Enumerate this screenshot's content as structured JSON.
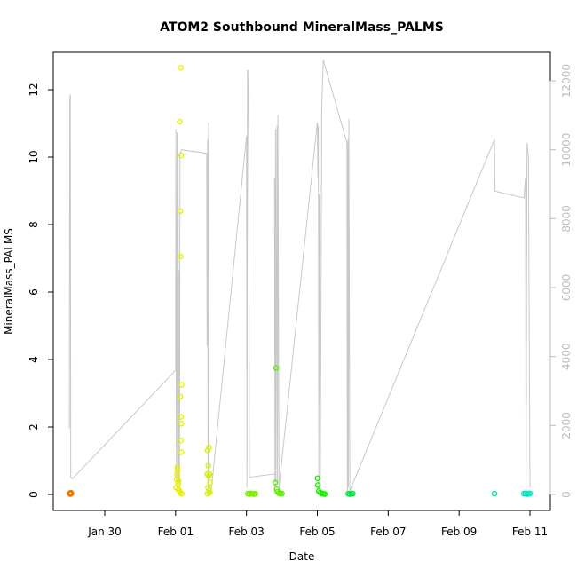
{
  "chart_data": {
    "type": "scatter",
    "title": "ATOM2 Southbound MineralMass_PALMS",
    "xlabel": "Date",
    "ylabel": "MineralMass_PALMS",
    "x_unit": "days",
    "xlim": [
      "2017-01-28",
      "2017-02-11"
    ],
    "ylim": [
      0,
      13
    ],
    "y_ticks": [
      0,
      2,
      4,
      6,
      8,
      10,
      12
    ],
    "y_tick_labels": [
      "0",
      "2",
      "4",
      "6",
      "8",
      "10",
      "12"
    ],
    "x_ticks": [
      "2017-01-30",
      "2017-02-01",
      "2017-02-03",
      "2017-02-05",
      "2017-02-07",
      "2017-02-09",
      "2017-02-11"
    ],
    "x_tick_labels": [
      "Jan 30",
      "Feb 01",
      "Feb 03",
      "Feb 05",
      "Feb 07",
      "Feb 09",
      "Feb 11"
    ],
    "y2_ticks": [
      0,
      2000,
      4000,
      6000,
      8000,
      10000,
      12000
    ],
    "y2_tick_labels": [
      "0",
      "2000",
      "4000",
      "6000",
      "8000",
      "10000",
      "12000"
    ],
    "y2lim": [
      0,
      12800
    ],
    "y2_color": "#bdbdbd",
    "grid": false,
    "legend": "none",
    "series": [
      {
        "color": "#f07800",
        "points": [
          [
            "2017-01-29T00:10",
            0.03
          ],
          [
            "2017-01-29T00:20",
            0.02
          ],
          [
            "2017-01-29T00:30",
            0.04
          ],
          [
            "2017-01-29T00:40",
            0.01
          ],
          [
            "2017-01-29T00:50",
            0.03
          ],
          [
            "2017-01-29T01:00",
            0.02
          ],
          [
            "2017-01-29T01:10",
            0.05
          ],
          [
            "2017-01-29T01:20",
            0.02
          ]
        ]
      },
      {
        "color": "#e8f000",
        "points": [
          [
            "2017-02-01T03:30",
            12.65
          ],
          [
            "2017-02-01T02:50",
            11.05
          ],
          [
            "2017-02-01T03:50",
            10.05
          ],
          [
            "2017-02-01T03:10",
            8.4
          ],
          [
            "2017-02-01T03:20",
            7.05
          ],
          [
            "2017-02-01T04:00",
            3.25
          ],
          [
            "2017-02-01T03:10",
            2.9
          ],
          [
            "2017-02-01T03:40",
            2.3
          ],
          [
            "2017-02-01T03:50",
            2.1
          ],
          [
            "2017-02-01T03:30",
            1.6
          ],
          [
            "2017-02-01T03:50",
            1.25
          ],
          [
            "2017-02-01T01:10",
            0.8
          ],
          [
            "2017-02-01T01:20",
            0.7
          ],
          [
            "2017-02-01T01:00",
            0.6
          ],
          [
            "2017-02-01T00:40",
            0.45
          ],
          [
            "2017-02-01T02:00",
            0.4
          ],
          [
            "2017-02-01T01:40",
            0.3
          ],
          [
            "2017-02-01T00:20",
            0.2
          ],
          [
            "2017-02-01T01:50",
            0.15
          ],
          [
            "2017-02-01T02:40",
            0.1
          ],
          [
            "2017-02-01T03:00",
            0.05
          ],
          [
            "2017-02-01T04:10",
            0.02
          ]
        ]
      },
      {
        "color": "#d8f000",
        "points": [
          [
            "2017-02-01T21:50",
            1.3
          ],
          [
            "2017-02-01T22:40",
            1.4
          ],
          [
            "2017-02-01T22:10",
            0.85
          ],
          [
            "2017-02-01T21:30",
            0.6
          ],
          [
            "2017-02-01T22:30",
            0.55
          ],
          [
            "2017-02-01T23:00",
            0.6
          ],
          [
            "2017-02-01T23:20",
            0.35
          ],
          [
            "2017-02-01T22:00",
            0.2
          ],
          [
            "2017-02-01T22:50",
            0.1
          ],
          [
            "2017-02-01T23:10",
            0.05
          ],
          [
            "2017-02-01T21:40",
            0.02
          ]
        ]
      },
      {
        "color": "#7cf000",
        "points": [
          [
            "2017-02-03T01:00",
            0.02
          ],
          [
            "2017-02-03T02:00",
            0.01
          ],
          [
            "2017-02-03T03:00",
            0.03
          ],
          [
            "2017-02-03T04:00",
            0.02
          ],
          [
            "2017-02-03T05:00",
            0.01
          ],
          [
            "2017-02-03T06:00",
            0.02
          ]
        ]
      },
      {
        "color": "#5cf000",
        "points": [
          [
            "2017-02-03T20:00",
            3.75
          ],
          [
            "2017-02-03T19:30",
            0.35
          ],
          [
            "2017-02-03T20:30",
            0.15
          ],
          [
            "2017-02-03T21:00",
            0.08
          ],
          [
            "2017-02-03T22:00",
            0.04
          ],
          [
            "2017-02-03T23:00",
            0.02
          ],
          [
            "2017-02-04T00:00",
            0.03
          ]
        ]
      },
      {
        "color": "#18f000",
        "points": [
          [
            "2017-02-05T00:10",
            0.48
          ],
          [
            "2017-02-05T00:20",
            0.28
          ],
          [
            "2017-02-05T01:00",
            0.1
          ],
          [
            "2017-02-05T02:00",
            0.05
          ],
          [
            "2017-02-05T03:00",
            0.03
          ],
          [
            "2017-02-05T04:00",
            0.02
          ],
          [
            "2017-02-05T05:00",
            0.01
          ]
        ]
      },
      {
        "color": "#00e840",
        "points": [
          [
            "2017-02-05T21:00",
            0.02
          ],
          [
            "2017-02-05T22:00",
            0.01
          ],
          [
            "2017-02-05T23:00",
            0.03
          ],
          [
            "2017-02-06T00:00",
            0.02
          ]
        ]
      },
      {
        "color": "#00e8a0",
        "points": [
          [
            "2017-02-10T00:00",
            0.02
          ]
        ]
      },
      {
        "color": "#00e8c0",
        "points": [
          [
            "2017-02-10T20:00",
            0.02
          ],
          [
            "2017-02-10T21:00",
            0.03
          ],
          [
            "2017-02-10T22:00",
            0.01
          ],
          [
            "2017-02-10T23:00",
            0.02
          ],
          [
            "2017-02-11T00:00",
            0.03
          ]
        ]
      }
    ],
    "secondary_line": {
      "color": "#c8c8c8",
      "axis": "y2",
      "points": [
        [
          "2017-01-29T00:00",
          1900
        ],
        [
          "2017-01-29T00:20",
          11500
        ],
        [
          "2017-01-29T00:40",
          11600
        ],
        [
          "2017-01-29T01:00",
          500
        ],
        [
          "2017-01-29T02:00",
          450
        ],
        [
          "2017-02-01T00:00",
          3600
        ],
        [
          "2017-02-01T00:10",
          10600
        ],
        [
          "2017-02-01T00:30",
          300
        ],
        [
          "2017-02-01T01:00",
          10500
        ],
        [
          "2017-02-01T01:20",
          200
        ],
        [
          "2017-02-01T01:40",
          9900
        ],
        [
          "2017-02-01T02:00",
          400
        ],
        [
          "2017-02-01T02:20",
          6500
        ],
        [
          "2017-02-01T02:40",
          100
        ],
        [
          "2017-02-01T03:00",
          9900
        ],
        [
          "2017-02-01T04:00",
          10000
        ],
        [
          "2017-02-01T21:00",
          9900
        ],
        [
          "2017-02-01T21:20",
          4300
        ],
        [
          "2017-02-01T21:40",
          10300
        ],
        [
          "2017-02-01T22:00",
          100
        ],
        [
          "2017-02-01T22:20",
          10800
        ],
        [
          "2017-02-01T22:40",
          100
        ],
        [
          "2017-02-02T00:00",
          50
        ],
        [
          "2017-02-03T00:00",
          10400
        ],
        [
          "2017-02-03T00:20",
          200
        ],
        [
          "2017-02-03T00:40",
          12300
        ],
        [
          "2017-02-03T01:00",
          12300
        ],
        [
          "2017-02-03T01:30",
          9800
        ],
        [
          "2017-02-03T02:00",
          500
        ],
        [
          "2017-02-03T20:00",
          600
        ],
        [
          "2017-02-03T19:00",
          9200
        ],
        [
          "2017-02-03T19:20",
          100
        ],
        [
          "2017-02-03T19:40",
          10600
        ],
        [
          "2017-02-03T20:00",
          200
        ],
        [
          "2017-02-03T20:40",
          10700
        ],
        [
          "2017-02-03T21:00",
          300
        ],
        [
          "2017-02-03T21:20",
          11000
        ],
        [
          "2017-02-03T22:00",
          200
        ],
        [
          "2017-02-05T00:00",
          10800
        ],
        [
          "2017-02-05T00:20",
          9200
        ],
        [
          "2017-02-05T00:40",
          10700
        ],
        [
          "2017-02-05T01:00",
          100
        ],
        [
          "2017-02-05T01:20",
          8700
        ],
        [
          "2017-02-05T02:00",
          100
        ],
        [
          "2017-02-05T03:00",
          11300
        ],
        [
          "2017-02-05T04:00",
          12600
        ],
        [
          "2017-02-05T20:00",
          10200
        ],
        [
          "2017-02-05T20:20",
          100
        ],
        [
          "2017-02-05T20:40",
          10300
        ],
        [
          "2017-02-05T21:00",
          200
        ],
        [
          "2017-02-05T21:20",
          10900
        ],
        [
          "2017-02-05T22:00",
          100
        ],
        [
          "2017-02-10T00:00",
          10300
        ],
        [
          "2017-02-10T00:20",
          8800
        ],
        [
          "2017-02-10T20:00",
          8600
        ],
        [
          "2017-02-10T21:00",
          9200
        ],
        [
          "2017-02-10T21:20",
          100
        ],
        [
          "2017-02-10T22:00",
          10200
        ],
        [
          "2017-02-10T23:00",
          9800
        ],
        [
          "2017-02-11T00:00",
          200
        ]
      ]
    }
  }
}
